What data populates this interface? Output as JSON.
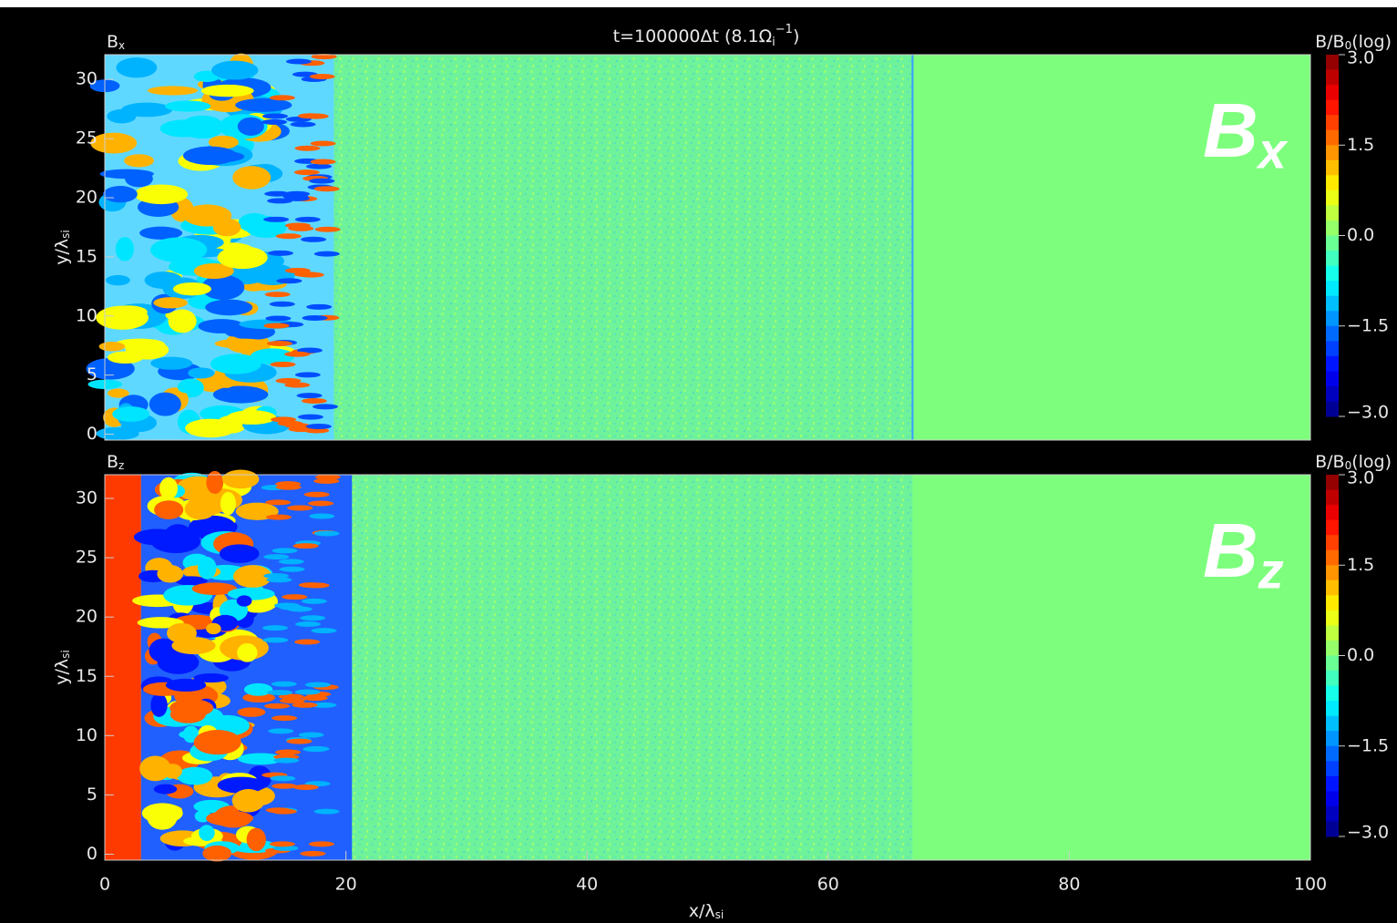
{
  "title": {
    "main": "t=100000Δt (8.1Ω",
    "sub": "i",
    "sup": "−1",
    "end": ")"
  },
  "chart_data": [
    {
      "type": "heatmap",
      "label": {
        "main": "B",
        "sub": "x"
      },
      "annotation": {
        "main": "B",
        "sub": "x"
      },
      "ylabel": {
        "main": "y/λ",
        "sub": "si"
      },
      "xlim": [
        0,
        100
      ],
      "ylim": [
        -0.5,
        32.1
      ],
      "yticks": [
        0,
        5,
        10,
        15,
        20,
        25,
        30
      ],
      "colorbar": {
        "label": {
          "main": "B/B",
          "sub": "0",
          "end": "(log)"
        },
        "lim": [
          -3,
          3
        ],
        "ticks": [
          {
            "value": 3,
            "label": "3.0"
          },
          {
            "value": 1.5,
            "label": "1.5"
          },
          {
            "value": 0,
            "label": "0.0"
          },
          {
            "value": -1.5,
            "label": "−1.5"
          },
          {
            "value": -3,
            "label": "−3.0"
          }
        ]
      }
    },
    {
      "type": "heatmap",
      "label": {
        "main": "B",
        "sub": "z"
      },
      "annotation": {
        "main": "B",
        "sub": "z"
      },
      "ylabel": {
        "main": "y/λ",
        "sub": "si"
      },
      "xlabel": {
        "main": "x/λ",
        "sub": "si"
      },
      "xlim": [
        0,
        100
      ],
      "xticks": [
        0,
        20,
        40,
        60,
        80,
        100
      ],
      "ylim": [
        -0.5,
        32
      ],
      "yticks": [
        0,
        5,
        10,
        15,
        20,
        25,
        30
      ],
      "colorbar": {
        "label": {
          "main": "B/B",
          "sub": "0",
          "end": "(log)"
        },
        "lim": [
          -3,
          3
        ],
        "ticks": [
          {
            "value": 3,
            "label": "3.0"
          },
          {
            "value": 1.5,
            "label": "1.5"
          },
          {
            "value": 0,
            "label": "0.0"
          },
          {
            "value": -1.5,
            "label": "−1.5"
          },
          {
            "value": -3,
            "label": "−3.0"
          }
        ]
      }
    }
  ]
}
